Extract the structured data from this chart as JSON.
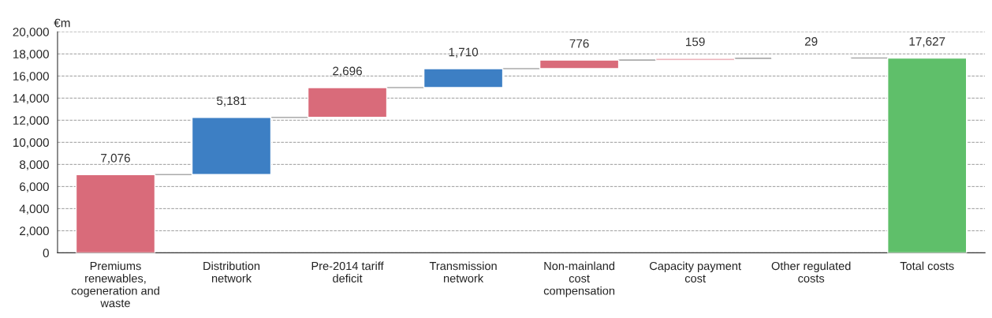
{
  "chart_data": {
    "type": "bar",
    "ylabel": "€m",
    "categories": [
      "Premiums renewables, cogeneration and waste",
      "Distribution network",
      "Pre-2014 tariff deficit",
      "Transmission network",
      "Non-mainland cost compensation",
      "Capacity payment cost",
      "Other regulated costs",
      "Total costs"
    ],
    "values": [
      7076,
      5181,
      2696,
      1710,
      776,
      159,
      29,
      17627
    ],
    "base": [
      0,
      7076,
      12257,
      14953,
      16663,
      17439,
      17598,
      0
    ],
    "colors": [
      "#d96b7a",
      "#3d7fc4",
      "#d96b7a",
      "#3d7fc4",
      "#d96b7a",
      "#d96b7a",
      "#d92b2b",
      "#5fbf6a"
    ],
    "ylim": [
      0,
      20000
    ],
    "yticks": [
      {
        "value": 0,
        "label": "0"
      },
      {
        "value": 2000,
        "label": "2,000"
      },
      {
        "value": 4000,
        "label": "4,000"
      },
      {
        "value": 6000,
        "label": "6,000"
      },
      {
        "value": 8000,
        "label": "8,000"
      },
      {
        "value": 10000,
        "label": "10,000"
      },
      {
        "value": 12000,
        "label": "12,000"
      },
      {
        "value": 14000,
        "label": "14,000"
      },
      {
        "value": 16000,
        "label": "16,000"
      },
      {
        "value": 18000,
        "label": "18,000"
      },
      {
        "value": 20000,
        "label": "20,000"
      }
    ],
    "value_labels": [
      "7,076",
      "5,181",
      "2,696",
      "1,710",
      "776",
      "159",
      "29",
      "17,627"
    ],
    "grid": "y",
    "line_style": "dashed"
  }
}
